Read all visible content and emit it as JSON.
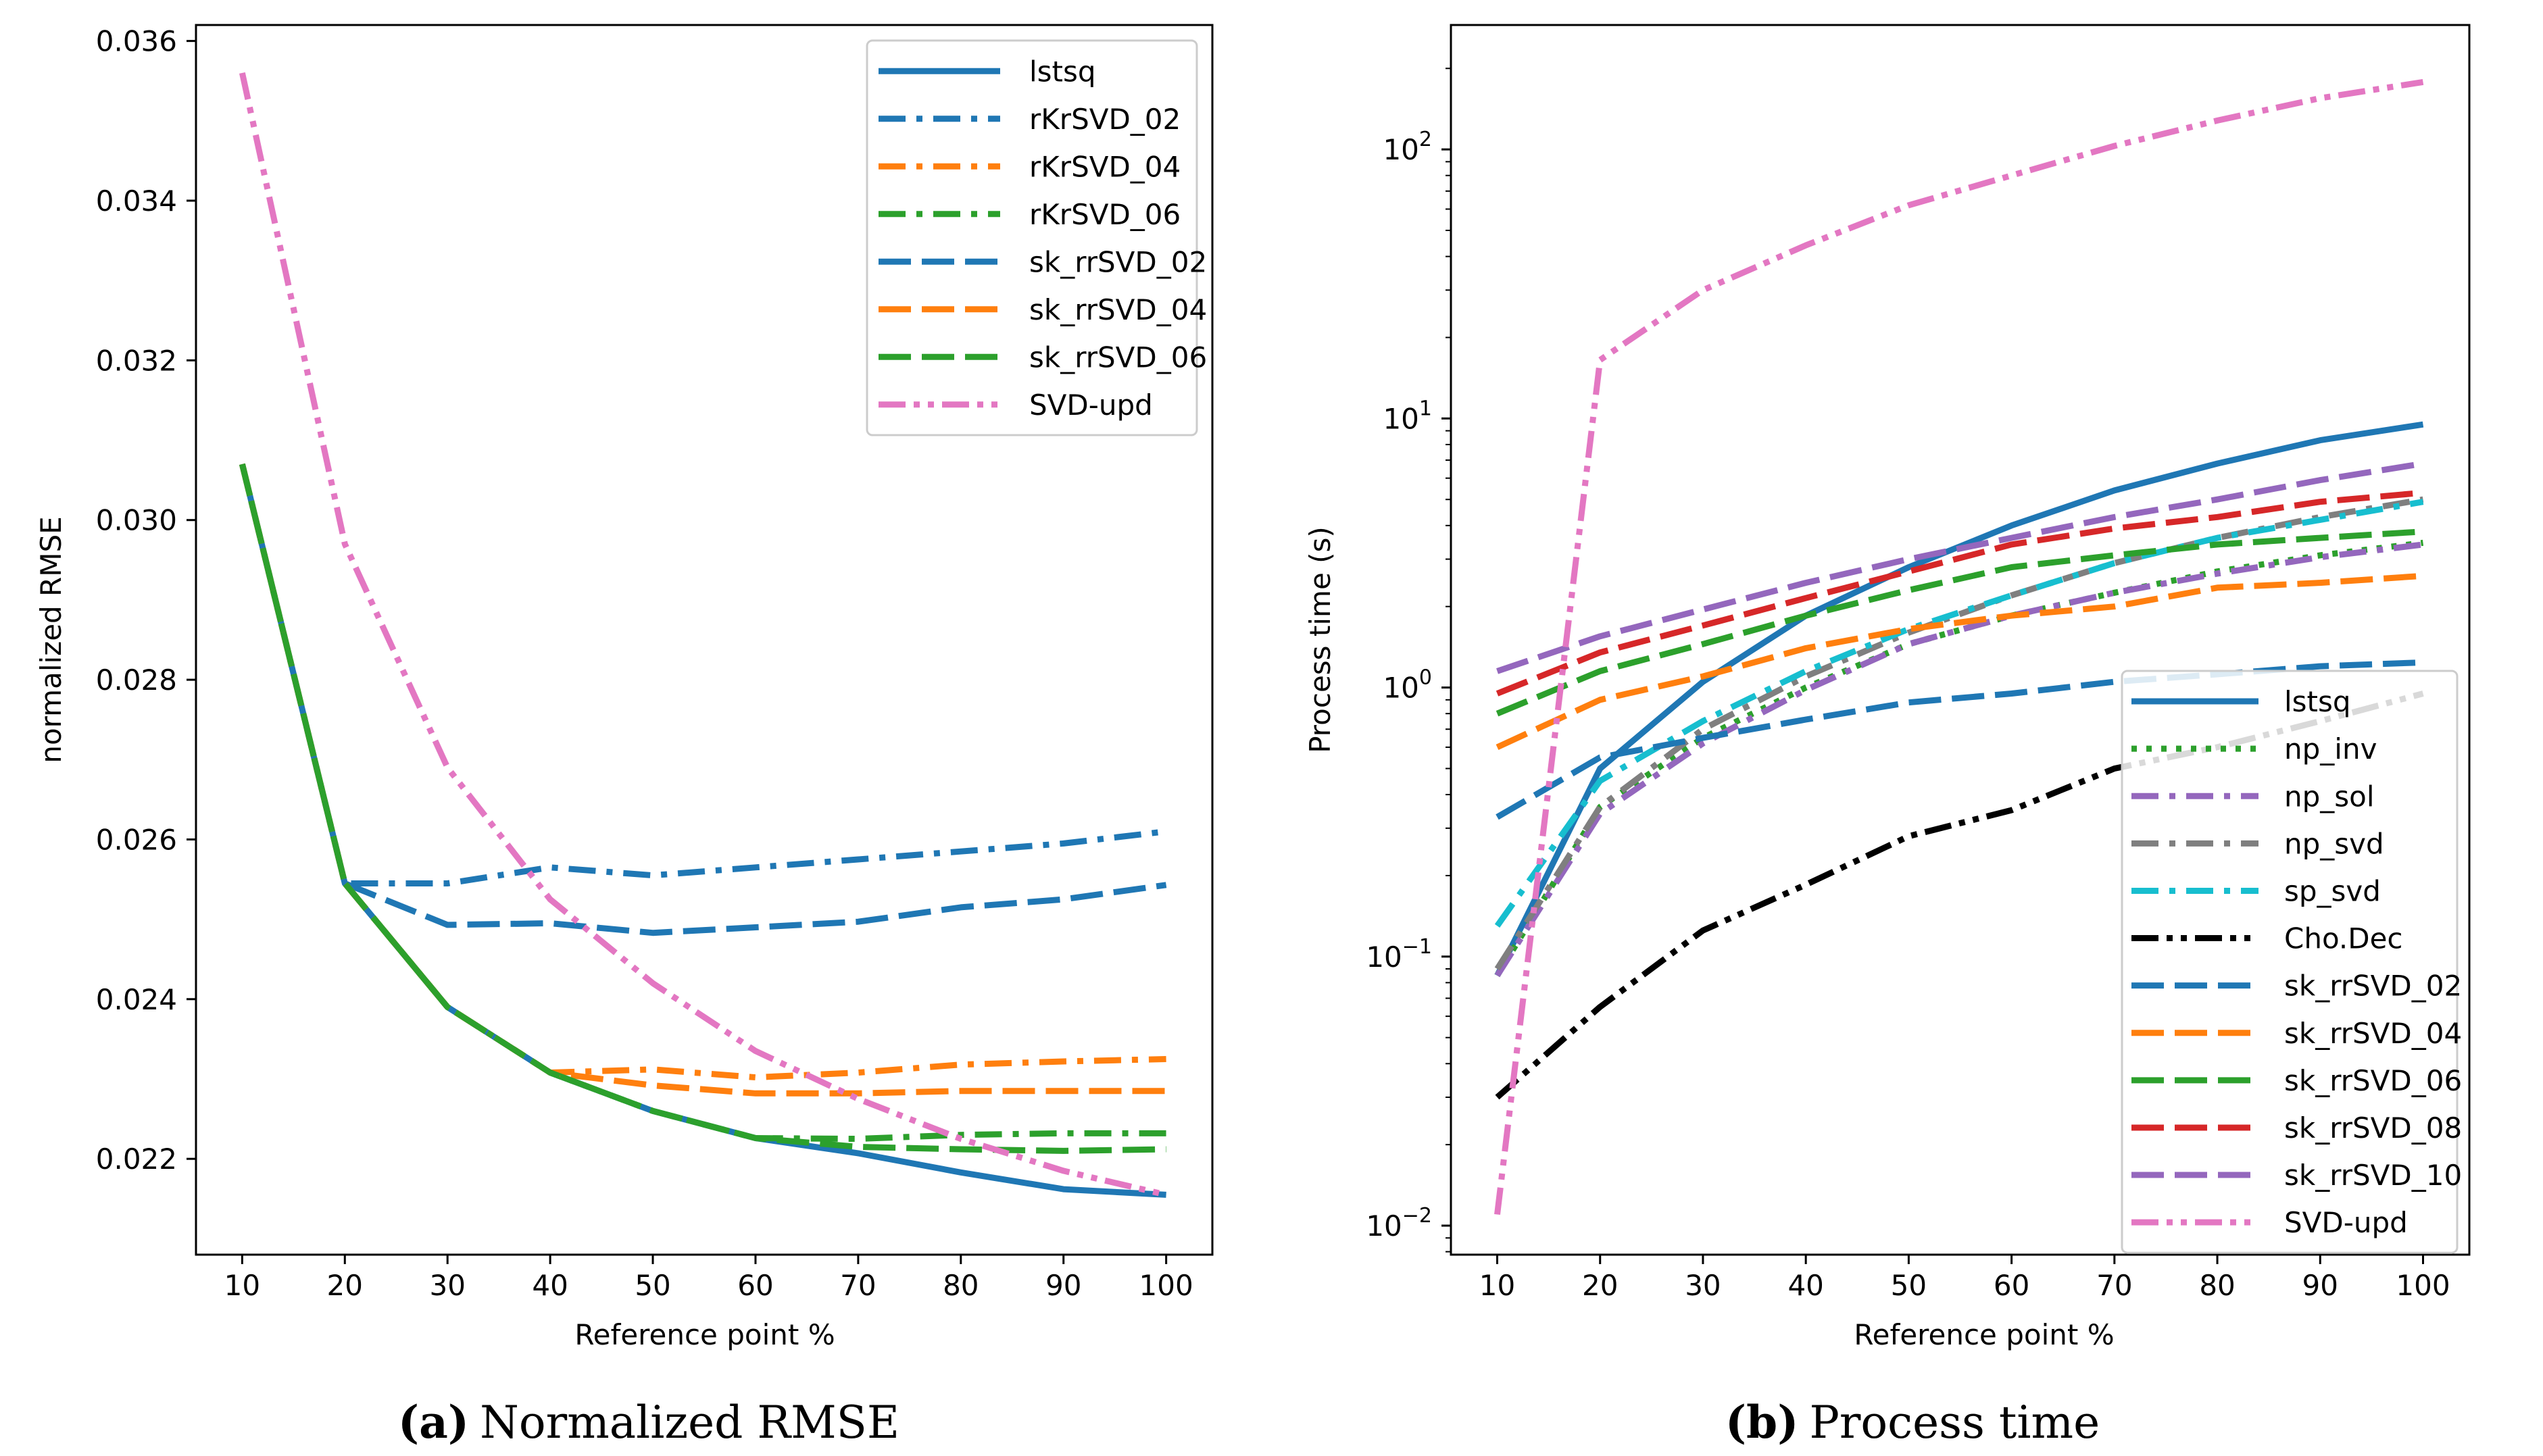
{
  "chart_data": [
    {
      "type": "line",
      "panel": "a",
      "caption_label": "(a)",
      "caption_text": "Normalized RMSE",
      "title": "",
      "xlabel": "Reference point %",
      "ylabel": "normalized RMSE",
      "yscale": "linear",
      "xlim": [
        5.5,
        104.5
      ],
      "ylim": [
        0.0208,
        0.0362
      ],
      "xticks": [
        10,
        20,
        30,
        40,
        50,
        60,
        70,
        80,
        90,
        100
      ],
      "xtick_labels": [
        "10",
        "20",
        "30",
        "40",
        "50",
        "60",
        "70",
        "80",
        "90",
        "100"
      ],
      "yticks": [
        0.022,
        0.024,
        0.026,
        0.028,
        0.03,
        0.032,
        0.034,
        0.036
      ],
      "ytick_labels": [
        "0.022",
        "0.024",
        "0.026",
        "0.028",
        "0.030",
        "0.032",
        "0.034",
        "0.036"
      ],
      "grid": false,
      "legend_position": "top-right",
      "x": [
        10,
        20,
        30,
        40,
        50,
        60,
        70,
        80,
        90,
        100
      ],
      "series": [
        {
          "name": "lstsq",
          "color": "#1f77b4",
          "style": "solid",
          "values": [
            0.0307,
            0.02545,
            0.0239,
            0.02308,
            0.0226,
            0.02226,
            0.02207,
            0.02183,
            0.02162,
            0.02155
          ]
        },
        {
          "name": "rKrSVD_02",
          "color": "#1f77b4",
          "style": "dashdot",
          "values": [
            0.0307,
            0.02545,
            0.02545,
            0.02565,
            0.02555,
            0.02565,
            0.02575,
            0.02585,
            0.02595,
            0.0261
          ]
        },
        {
          "name": "rKrSVD_04",
          "color": "#ff7f0e",
          "style": "dashdot",
          "values": [
            0.0307,
            0.02545,
            0.0239,
            0.02308,
            0.02312,
            0.02302,
            0.02308,
            0.02318,
            0.02322,
            0.02325
          ]
        },
        {
          "name": "rKrSVD_06",
          "color": "#2ca02c",
          "style": "dashdot",
          "values": [
            0.0307,
            0.02545,
            0.0239,
            0.02308,
            0.0226,
            0.02226,
            0.02225,
            0.0223,
            0.02232,
            0.02232
          ]
        },
        {
          "name": "sk_rrSVD_02",
          "color": "#1f77b4",
          "style": "dashed",
          "values": [
            0.0307,
            0.02545,
            0.02493,
            0.02495,
            0.02483,
            0.0249,
            0.02497,
            0.02515,
            0.02525,
            0.02543
          ]
        },
        {
          "name": "sk_rrSVD_04",
          "color": "#ff7f0e",
          "style": "dashed",
          "values": [
            0.0307,
            0.02545,
            0.0239,
            0.02308,
            0.02292,
            0.02282,
            0.02282,
            0.02285,
            0.02285,
            0.02285
          ]
        },
        {
          "name": "sk_rrSVD_06",
          "color": "#2ca02c",
          "style": "dashed",
          "values": [
            0.0307,
            0.02545,
            0.0239,
            0.02308,
            0.0226,
            0.02226,
            0.02215,
            0.02212,
            0.0221,
            0.02212
          ]
        },
        {
          "name": "SVD-upd",
          "color": "#e377c2",
          "style": "dashdotdot",
          "values": [
            0.0356,
            0.0297,
            0.0269,
            0.02525,
            0.0242,
            0.02335,
            0.02275,
            0.02225,
            0.02185,
            0.02155
          ]
        }
      ]
    },
    {
      "type": "line",
      "panel": "b",
      "caption_label": "(b)",
      "caption_text": "Process time",
      "title": "",
      "xlabel": "Reference point %",
      "ylabel": "Process time (s)",
      "yscale": "log",
      "xlim": [
        5.5,
        104.5
      ],
      "ylim": [
        0.0078,
        290
      ],
      "xticks": [
        10,
        20,
        30,
        40,
        50,
        60,
        70,
        80,
        90,
        100
      ],
      "xtick_labels": [
        "10",
        "20",
        "30",
        "40",
        "50",
        "60",
        "70",
        "80",
        "90",
        "100"
      ],
      "yticks": [
        0.01,
        0.1,
        1,
        10,
        100
      ],
      "ytick_base": "10",
      "ytick_exponents": [
        "−2",
        "−1",
        "0",
        "1",
        "2"
      ],
      "grid": false,
      "legend_position": "lower-right",
      "x": [
        10,
        20,
        30,
        40,
        50,
        60,
        70,
        80,
        90,
        100
      ],
      "series": [
        {
          "name": "lstsq",
          "color": "#1f77b4",
          "style": "solid",
          "values": [
            0.085,
            0.5,
            1.05,
            1.85,
            2.8,
            4.0,
            5.4,
            6.8,
            8.3,
            9.5
          ]
        },
        {
          "name": "np_inv",
          "color": "#2ca02c",
          "style": "dotted",
          "values": [
            0.085,
            0.36,
            0.65,
            1.0,
            1.45,
            1.85,
            2.25,
            2.7,
            3.1,
            3.45
          ]
        },
        {
          "name": "np_sol",
          "color": "#9467bd",
          "style": "dashdot",
          "values": [
            0.085,
            0.34,
            0.62,
            0.98,
            1.45,
            1.85,
            2.25,
            2.65,
            3.05,
            3.4
          ]
        },
        {
          "name": "np_svd",
          "color": "#7f7f7f",
          "style": "dashdot",
          "values": [
            0.09,
            0.36,
            0.7,
            1.1,
            1.6,
            2.2,
            2.9,
            3.6,
            4.3,
            5.0
          ]
        },
        {
          "name": "sp_svd",
          "color": "#17becf",
          "style": "dashdot",
          "values": [
            0.13,
            0.45,
            0.75,
            1.15,
            1.65,
            2.2,
            2.9,
            3.6,
            4.2,
            4.9
          ]
        },
        {
          "name": "Cho.Dec",
          "color": "#000000",
          "style": "dashdotdot",
          "values": [
            0.03,
            0.065,
            0.125,
            0.185,
            0.28,
            0.35,
            0.5,
            0.6,
            0.75,
            0.95
          ]
        },
        {
          "name": "sk_rrSVD_02",
          "color": "#1f77b4",
          "style": "dashed",
          "values": [
            0.33,
            0.55,
            0.65,
            0.76,
            0.88,
            0.95,
            1.05,
            1.12,
            1.2,
            1.24
          ]
        },
        {
          "name": "sk_rrSVD_04",
          "color": "#ff7f0e",
          "style": "dashed",
          "values": [
            0.6,
            0.9,
            1.1,
            1.4,
            1.65,
            1.85,
            2.0,
            2.35,
            2.45,
            2.6
          ]
        },
        {
          "name": "sk_rrSVD_06",
          "color": "#2ca02c",
          "style": "dashed",
          "values": [
            0.8,
            1.15,
            1.45,
            1.85,
            2.3,
            2.8,
            3.1,
            3.4,
            3.6,
            3.8
          ]
        },
        {
          "name": "sk_rrSVD_08",
          "color": "#d62728",
          "style": "dashed",
          "values": [
            0.95,
            1.35,
            1.7,
            2.15,
            2.7,
            3.4,
            3.9,
            4.3,
            4.9,
            5.3
          ]
        },
        {
          "name": "sk_rrSVD_10",
          "color": "#9467bd",
          "style": "dashed",
          "values": [
            1.15,
            1.55,
            1.95,
            2.45,
            3.0,
            3.6,
            4.3,
            5.0,
            5.9,
            6.8
          ]
        },
        {
          "name": "SVD-upd",
          "color": "#e377c2",
          "style": "dashdotdot",
          "values": [
            0.011,
            16.5,
            30.0,
            44.0,
            62.0,
            80.0,
            103.0,
            128.0,
            155.0,
            178.0
          ]
        }
      ]
    }
  ]
}
